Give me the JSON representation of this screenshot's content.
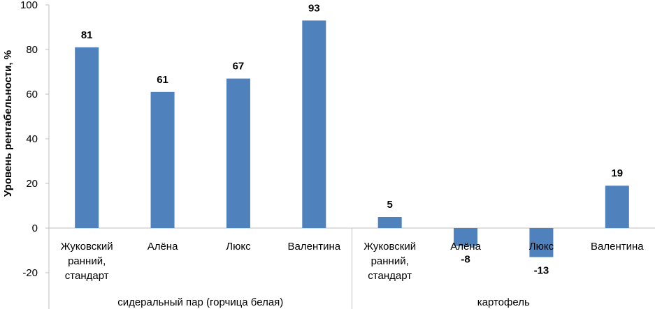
{
  "chart_data": {
    "type": "bar",
    "ylabel": "Уровень рентабельности, %",
    "ylim": [
      -20,
      100
    ],
    "yticks": [
      -20,
      0,
      20,
      40,
      60,
      80,
      100
    ],
    "grid": false,
    "legend": "none",
    "bar_color": "#4f81bd",
    "groups": [
      {
        "label": "сидеральный пар (горчица белая)",
        "categories": [
          [
            "Жуковский",
            "ранний,",
            "стандарт"
          ],
          [
            "Алёна"
          ],
          [
            "Люкс"
          ],
          [
            "Валентина"
          ]
        ],
        "values": [
          81,
          61,
          67,
          93
        ]
      },
      {
        "label": "картофель",
        "categories": [
          [
            "Жуковский",
            "ранний,",
            "стандарт"
          ],
          [
            "Алёна"
          ],
          [
            "Люкс"
          ],
          [
            "Валентина"
          ]
        ],
        "values": [
          5,
          -8,
          -13,
          19
        ]
      }
    ]
  }
}
